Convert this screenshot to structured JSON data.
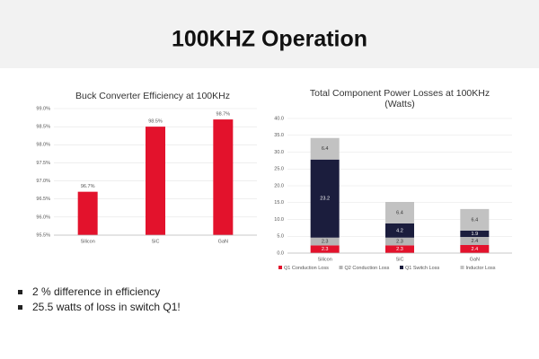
{
  "title": "100KHZ Operation",
  "bullets": [
    "2 % difference in efficiency",
    "25.5 watts of loss in switch Q1!"
  ],
  "chart_data": [
    {
      "type": "bar",
      "title": [
        "Buck Converter Efficiency at 100KHz"
      ],
      "categories": [
        "Silicon",
        "SiC",
        "GaN"
      ],
      "values": [
        96.7,
        98.5,
        98.7
      ],
      "value_labels": [
        "96.7%",
        "98.5%",
        "98.7%"
      ],
      "color": "#e3122c",
      "ylim": [
        95.5,
        99.0
      ],
      "yticks": [
        {
          "value": 95.5,
          "label": "95.5%"
        },
        {
          "value": 96.0,
          "label": "96.0%"
        },
        {
          "value": 96.5,
          "label": "96.5%"
        },
        {
          "value": 97.0,
          "label": "97.0%"
        },
        {
          "value": 97.5,
          "label": "97.5%"
        },
        {
          "value": 98.0,
          "label": "98.0%"
        },
        {
          "value": 98.5,
          "label": "98.5%"
        },
        {
          "value": 99.0,
          "label": "99.0%"
        }
      ],
      "grid": true
    },
    {
      "type": "stacked_bar",
      "title": [
        "Total Component Power Losses at 100KHz",
        "(Watts)"
      ],
      "categories": [
        "Silicon",
        "SiC",
        "GaN"
      ],
      "series": [
        {
          "name": "Q1 Conduction Loss",
          "color": "#e3122c",
          "values": [
            2.3,
            2.3,
            2.4
          ]
        },
        {
          "name": "Q2 Conduction Loss",
          "color": "#b5b5b5",
          "values": [
            2.3,
            2.3,
            2.4
          ]
        },
        {
          "name": "Q1 Switch Loss",
          "color": "#1b1d3d",
          "values": [
            23.2,
            4.2,
            1.9
          ]
        },
        {
          "name": "Inductor Loss",
          "color": "#c2c2c2",
          "values": [
            6.4,
            6.4,
            6.4
          ]
        }
      ],
      "ylim": [
        0,
        40
      ],
      "yticks": [
        {
          "value": 0,
          "label": "0.0"
        },
        {
          "value": 5,
          "label": "5.0"
        },
        {
          "value": 10,
          "label": "10.0"
        },
        {
          "value": 15,
          "label": "15.0"
        },
        {
          "value": 20,
          "label": "20.0"
        },
        {
          "value": 25,
          "label": "25.0"
        },
        {
          "value": 30,
          "label": "30.0"
        },
        {
          "value": 35,
          "label": "35.0"
        },
        {
          "value": 40,
          "label": "40.0"
        }
      ],
      "grid": true,
      "legend": "bottom"
    }
  ]
}
